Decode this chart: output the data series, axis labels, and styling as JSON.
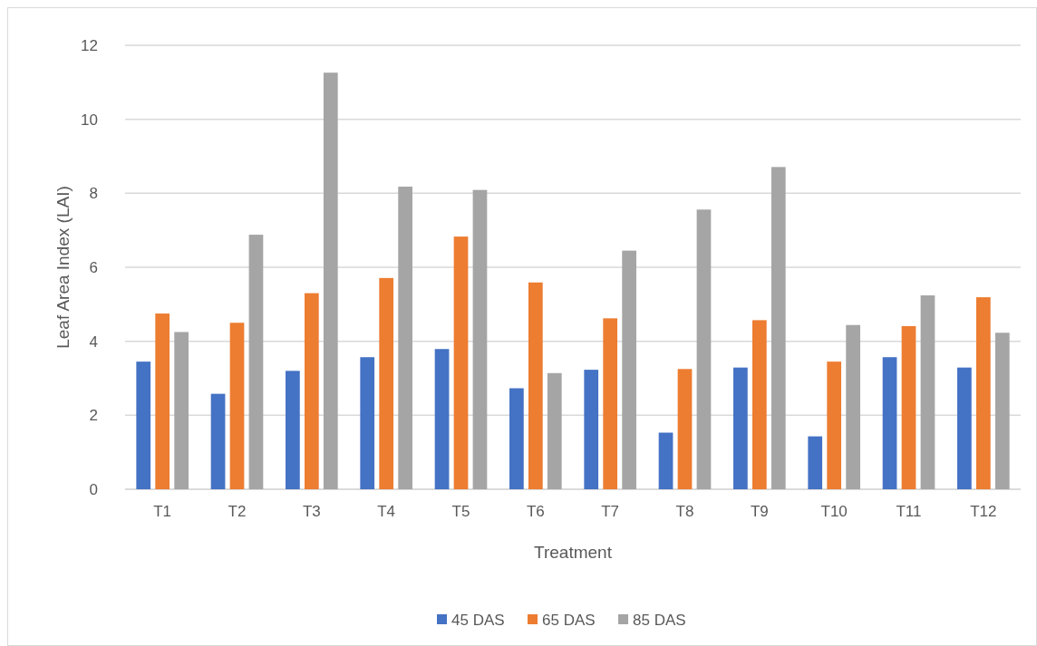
{
  "chart_data": {
    "type": "bar",
    "xlabel": "Treatment",
    "ylabel": "Leaf Area Index (LAI)",
    "categories": [
      "T1",
      "T2",
      "T3",
      "T4",
      "T5",
      "T6",
      "T7",
      "T8",
      "T9",
      "T10",
      "T11",
      "T12"
    ],
    "series": [
      {
        "name": "45 DAS",
        "color": "#4472c4",
        "values": [
          3.45,
          2.58,
          3.2,
          3.57,
          3.79,
          2.73,
          3.23,
          1.53,
          3.29,
          1.43,
          3.57,
          3.29
        ]
      },
      {
        "name": "65 DAS",
        "color": "#ed7d31",
        "values": [
          4.75,
          4.5,
          5.3,
          5.71,
          6.83,
          5.59,
          4.62,
          3.25,
          4.57,
          3.45,
          4.41,
          5.19
        ]
      },
      {
        "name": "85 DAS",
        "color": "#a5a5a5",
        "values": [
          4.25,
          6.88,
          11.26,
          8.18,
          8.09,
          3.14,
          6.45,
          7.56,
          8.71,
          4.44,
          5.24,
          4.23
        ]
      }
    ],
    "ylim": [
      0,
      12
    ],
    "yticks": [
      0,
      2,
      4,
      6,
      8,
      10,
      12
    ],
    "grid": "y",
    "legend": "bottom"
  }
}
